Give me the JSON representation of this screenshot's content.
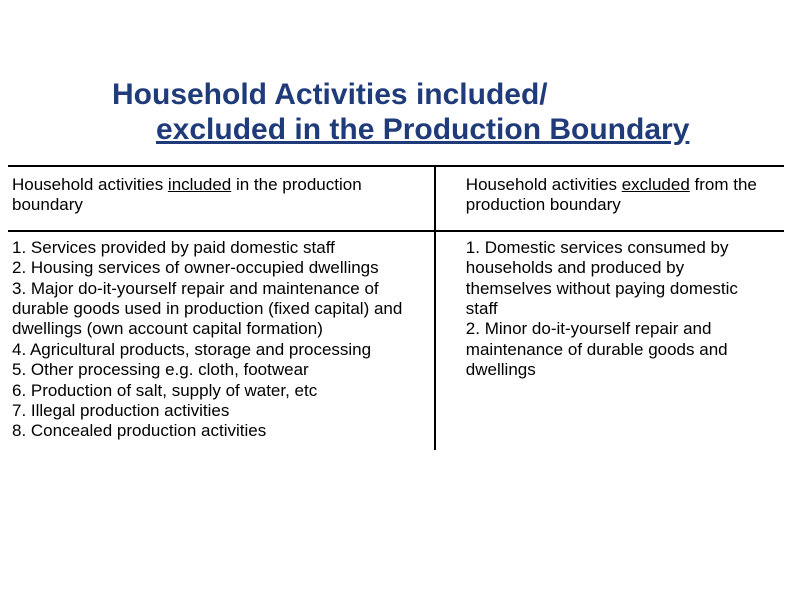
{
  "title": {
    "line1": "Household Activities included/",
    "line2": "excluded in the Production Boundary"
  },
  "headers": {
    "included": {
      "pre": "Household activities ",
      "underlined": "included",
      "post": " in the production boundary"
    },
    "excluded": {
      "pre": "Household activities ",
      "underlined": "excluded",
      "post": " from the production boundary"
    }
  },
  "included_items": [
    "1. Services provided by paid domestic staff",
    "2. Housing services of owner-occupied dwellings",
    "3. Major do-it-yourself repair and maintenance of durable goods used in production (fixed capital) and dwellings (own account capital formation)",
    "4. Agricultural products, storage and processing",
    "5. Other processing e.g. cloth, footwear",
    "6. Production of salt, supply of water, etc",
    "7. Illegal production activities",
    "8. Concealed production activities"
  ],
  "excluded_items": [
    "1. Domestic services consumed by households and produced by themselves without paying domestic staff",
    "2. Minor do-it-yourself repair and maintenance of durable goods and dwellings"
  ],
  "style": {
    "title_color": "#1f3b7a",
    "title_fontsize": 30,
    "body_fontsize": 17,
    "border_color": "#000000",
    "background_color": "#ffffff",
    "left_col_width_pct": 55,
    "right_col_width_pct": 45
  }
}
